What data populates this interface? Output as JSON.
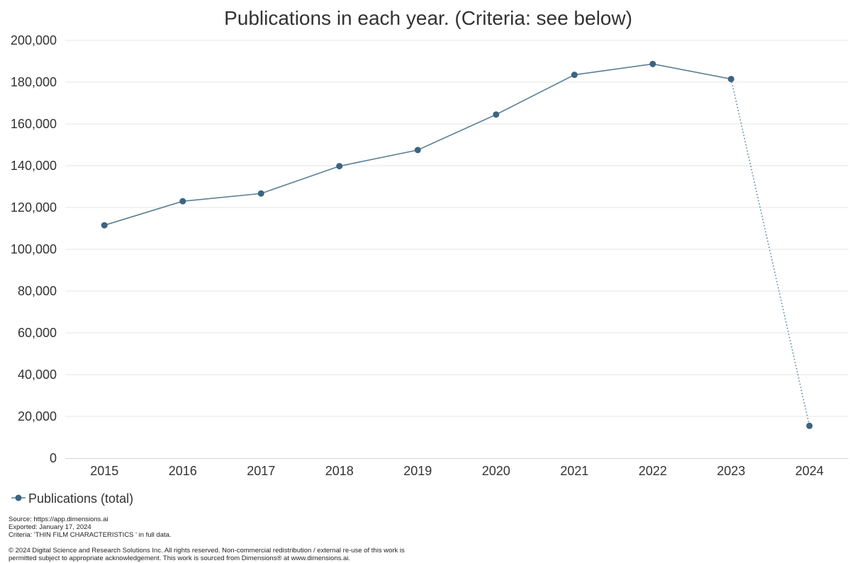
{
  "chart_data": {
    "type": "line",
    "title": "Publications in each year. (Criteria: see below)",
    "xlabel": "",
    "ylabel": "",
    "categories": [
      "2015",
      "2016",
      "2017",
      "2018",
      "2019",
      "2020",
      "2021",
      "2022",
      "2023",
      "2024"
    ],
    "series": [
      {
        "name": "Publications (total)",
        "values": [
          111500,
          123000,
          126700,
          139800,
          147500,
          164500,
          183500,
          188700,
          181500,
          15500
        ]
      }
    ],
    "ylim": [
      0,
      200000
    ],
    "yticks": [
      "0",
      "20,000",
      "40,000",
      "60,000",
      "80,000",
      "100,000",
      "120,000",
      "140,000",
      "160,000",
      "180,000",
      "200,000"
    ],
    "ytick_values": [
      0,
      20000,
      40000,
      60000,
      80000,
      100000,
      120000,
      140000,
      160000,
      180000,
      200000
    ],
    "grid": true,
    "legend_position": "bottom-left",
    "dotted_last_segment": true,
    "colors": {
      "line": "#5b7f96",
      "marker": "#3d6480",
      "grid": "#e6e6e6",
      "axis": "#ccd6eb"
    }
  },
  "footer": {
    "source": "Source: https://app.dimensions.ai",
    "exported": "Exported: January 17, 2024",
    "criteria": "Criteria: 'THIN FILM CHARACTERISTICS ' in full data.",
    "copyright_line1": "© 2024 Digital Science and Research Solutions Inc. All rights reserved. Non-commercial redistribution / external re-use of this work is",
    "copyright_line2": "permitted subject to appropriate acknowledgement. This work is sourced from Dimensions® at www.dimensions.ai."
  }
}
